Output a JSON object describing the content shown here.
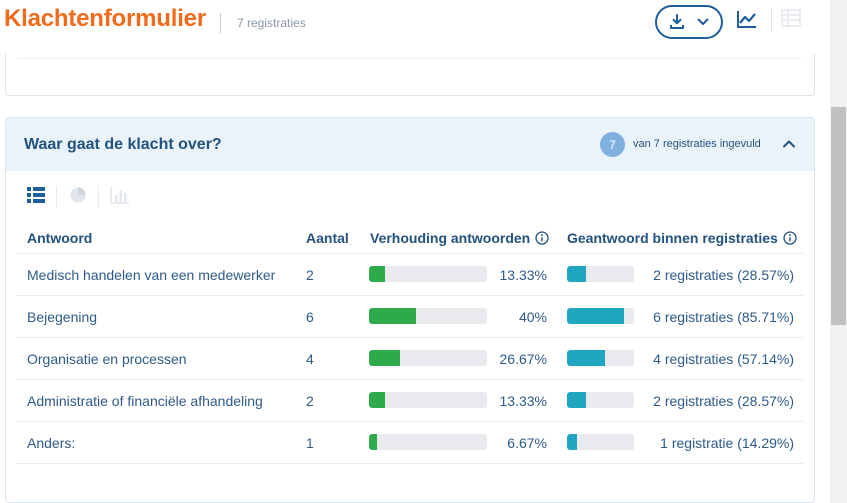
{
  "header": {
    "title": "Klachtenformulier",
    "registrations_label": "7 registraties",
    "download_icon": "download-icon",
    "chevron_icon": "chevron-down-icon",
    "chart_icon": "line-chart-icon",
    "table_icon": "table-view-icon"
  },
  "section": {
    "title": "Waar gaat de klacht over?",
    "filled_count": "7",
    "filled_text": "van 7 registraties ingevuld",
    "collapse_icon": "chevron-up-icon",
    "view_toggle": {
      "icons": [
        "table-view-icon",
        "pie-chart-icon",
        "bar-chart-icon"
      ],
      "active": "table-view-icon"
    },
    "columns": {
      "answer": "Antwoord",
      "count": "Aantal",
      "ratio": "Verhouding antwoorden",
      "within": "Geantwoord binnen registraties"
    },
    "rows": [
      {
        "answer": "Medisch handelen van een medewerker",
        "count": "2",
        "ratio_pct": "13.33%",
        "ratio_fraction": 0.1333,
        "within_text": "2 registraties (28.57%)",
        "within_fraction": 0.2857
      },
      {
        "answer": "Bejegening",
        "count": "6",
        "ratio_pct": "40%",
        "ratio_fraction": 0.4,
        "within_text": "6 registraties (85.71%)",
        "within_fraction": 0.8571
      },
      {
        "answer": "Organisatie en processen",
        "count": "4",
        "ratio_pct": "26.67%",
        "ratio_fraction": 0.2667,
        "within_text": "4 registraties (57.14%)",
        "within_fraction": 0.5714
      },
      {
        "answer": "Administratie of financiële afhandeling",
        "count": "2",
        "ratio_pct": "13.33%",
        "ratio_fraction": 0.1333,
        "within_text": "2 registraties (28.57%)",
        "within_fraction": 0.2857
      },
      {
        "answer": "Anders:",
        "count": "1",
        "ratio_pct": "6.67%",
        "ratio_fraction": 0.0667,
        "within_text": "1 registratie (14.29%)",
        "within_fraction": 0.1429
      }
    ]
  },
  "colors": {
    "brand_orange": "#f26b1d",
    "primary_blue": "#1f5d9c",
    "ratio_bar": "#2eaa4a",
    "within_bar": "#20a6c0",
    "badge": "#7fb0df"
  }
}
